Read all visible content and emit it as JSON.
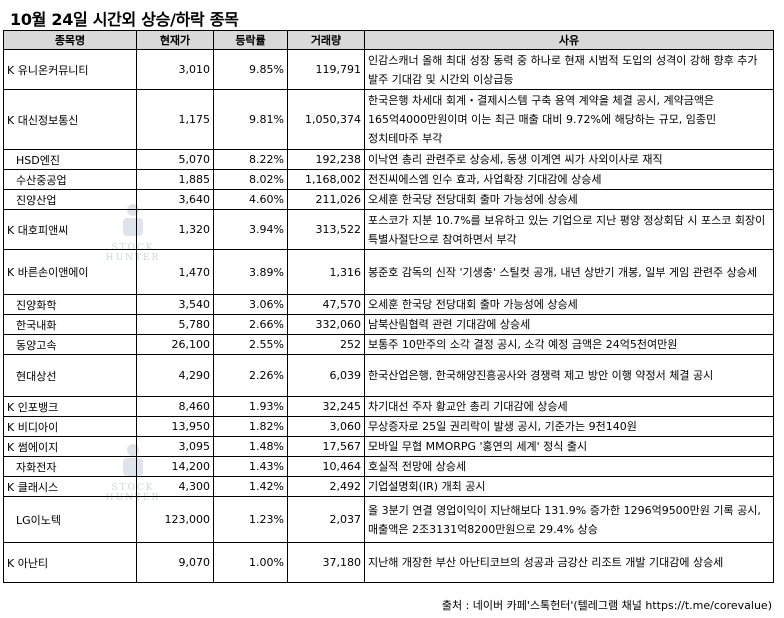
{
  "title": "10월 24일  시간외 상승/하락 종목",
  "headers": [
    "종목명",
    "현재가",
    "등락률",
    "거래량",
    "사유"
  ],
  "rows": [
    {
      "name": "K 유니온커뮤니티",
      "price": "3,010",
      "change": "9.85%",
      "volume": "119,791",
      "reason": "인감스캐너 올해 최대 성장 동력 중 하나로 현재 시범적 도입의 성격이 강해 향후 추가 발주 기대감 및 시간외 이상급등"
    },
    {
      "name": "K 대신정보통신",
      "price": "1,175",
      "change": "9.81%",
      "volume": "1,050,374",
      "reason": "한국은행 차세대 회계・결제시스템 구축 용역 계약을 체결 공시, 계약금액은 165억4000만원이며 이는 최근 매출 대비 9.72%에 해당하는 규모, 임종민 정치테마주 부각"
    },
    {
      "name": "HSD엔진",
      "price": "5,070",
      "change": "8.22%",
      "volume": "192,238",
      "reason": "이낙연 총리 관련주로 상승세, 동생 이계연 씨가 사외이사로 재직"
    },
    {
      "name": "수산중공업",
      "price": "1,885",
      "change": "8.02%",
      "volume": "1,168,002",
      "reason": "전진씨에스엠 인수 효과, 사업확장 기대감에 상승세"
    },
    {
      "name": "진양산업",
      "price": "3,640",
      "change": "4.60%",
      "volume": "211,026",
      "reason": "오세훈 한국당 전당대회 출마 가능성에 상승세"
    },
    {
      "name": "K 대호피앤씨",
      "price": "1,320",
      "change": "3.94%",
      "volume": "313,522",
      "reason": "포스코가 지분 10.7%를 보유하고 있는 기업으로 지난 평양 정상회담 시 포스코 회장이 특별사절단으로 참여하면서 부각"
    },
    {
      "name": "K 바른손이앤에이",
      "price": "1,470",
      "change": "3.89%",
      "volume": "1,316",
      "reason": "봉준호 감독의 신작 '기생충' 스틸컷 공개, 내년 상반기 개봉, 일부 게임 관련주 상승세"
    },
    {
      "name": "진양화학",
      "price": "3,540",
      "change": "3.06%",
      "volume": "47,570",
      "reason": "오세훈 한국당 전당대회 출마 가능성에 상승세"
    },
    {
      "name": "한국내화",
      "price": "5,780",
      "change": "2.66%",
      "volume": "332,060",
      "reason": "남북산림협력 관련 기대감에 상승세"
    },
    {
      "name": "동양고속",
      "price": "26,100",
      "change": "2.55%",
      "volume": "252",
      "reason": "보통주 10만주의 소각 결정 공시, 소각 예정 금액은 24억5천여만원"
    },
    {
      "name": "현대상선",
      "price": "4,290",
      "change": "2.26%",
      "volume": "6,039",
      "reason": "한국산업은행, 한국해양진흥공사와 경쟁력 제고 방안 이행 약정서 체결 공시"
    },
    {
      "name": "K 인포뱅크",
      "price": "8,460",
      "change": "1.93%",
      "volume": "32,245",
      "reason": "차기대선 주자 황교안 총리 기대감에 상승세"
    },
    {
      "name": "K 비디아이",
      "price": "13,950",
      "change": "1.82%",
      "volume": "3,060",
      "reason": "무상증자로 25일 권리락이 발생 공시, 기준가는 9천140원"
    },
    {
      "name": "K 썸에이지",
      "price": "3,095",
      "change": "1.48%",
      "volume": "17,567",
      "reason": "모바일 무협 MMORPG '홍연의 세계' 정식 출시"
    },
    {
      "name": "자화전자",
      "price": "14,200",
      "change": "1.43%",
      "volume": "10,464",
      "reason": "호실적 전망에 상승세"
    },
    {
      "name": "K 클래시스",
      "price": "4,300",
      "change": "1.42%",
      "volume": "2,492",
      "reason": "기업설명회(IR) 개최 공시"
    },
    {
      "name": "LG이노텍",
      "price": "123,000",
      "change": "1.23%",
      "volume": "2,037",
      "reason": "올 3분기 연결 영업이익이 지난해보다 131.9% 증가한 1296억9500만원 기록 공시, 매출액은 2조3131억8200만원으로 29.4% 상승"
    },
    {
      "name": "K 아난티",
      "price": "9,070",
      "change": "1.00%",
      "volume": "37,180",
      "reason": "지난해 개장한 부산 아난티코브의 성공과 금강산 리조트 개발 기대감에 상승세"
    }
  ],
  "source": "출처 : 네이버 카페'스톡헌터'(텔레그램 채널 https://t.me/corevalue)",
  "watermark": [
    "STOCK",
    "HUNTER"
  ]
}
